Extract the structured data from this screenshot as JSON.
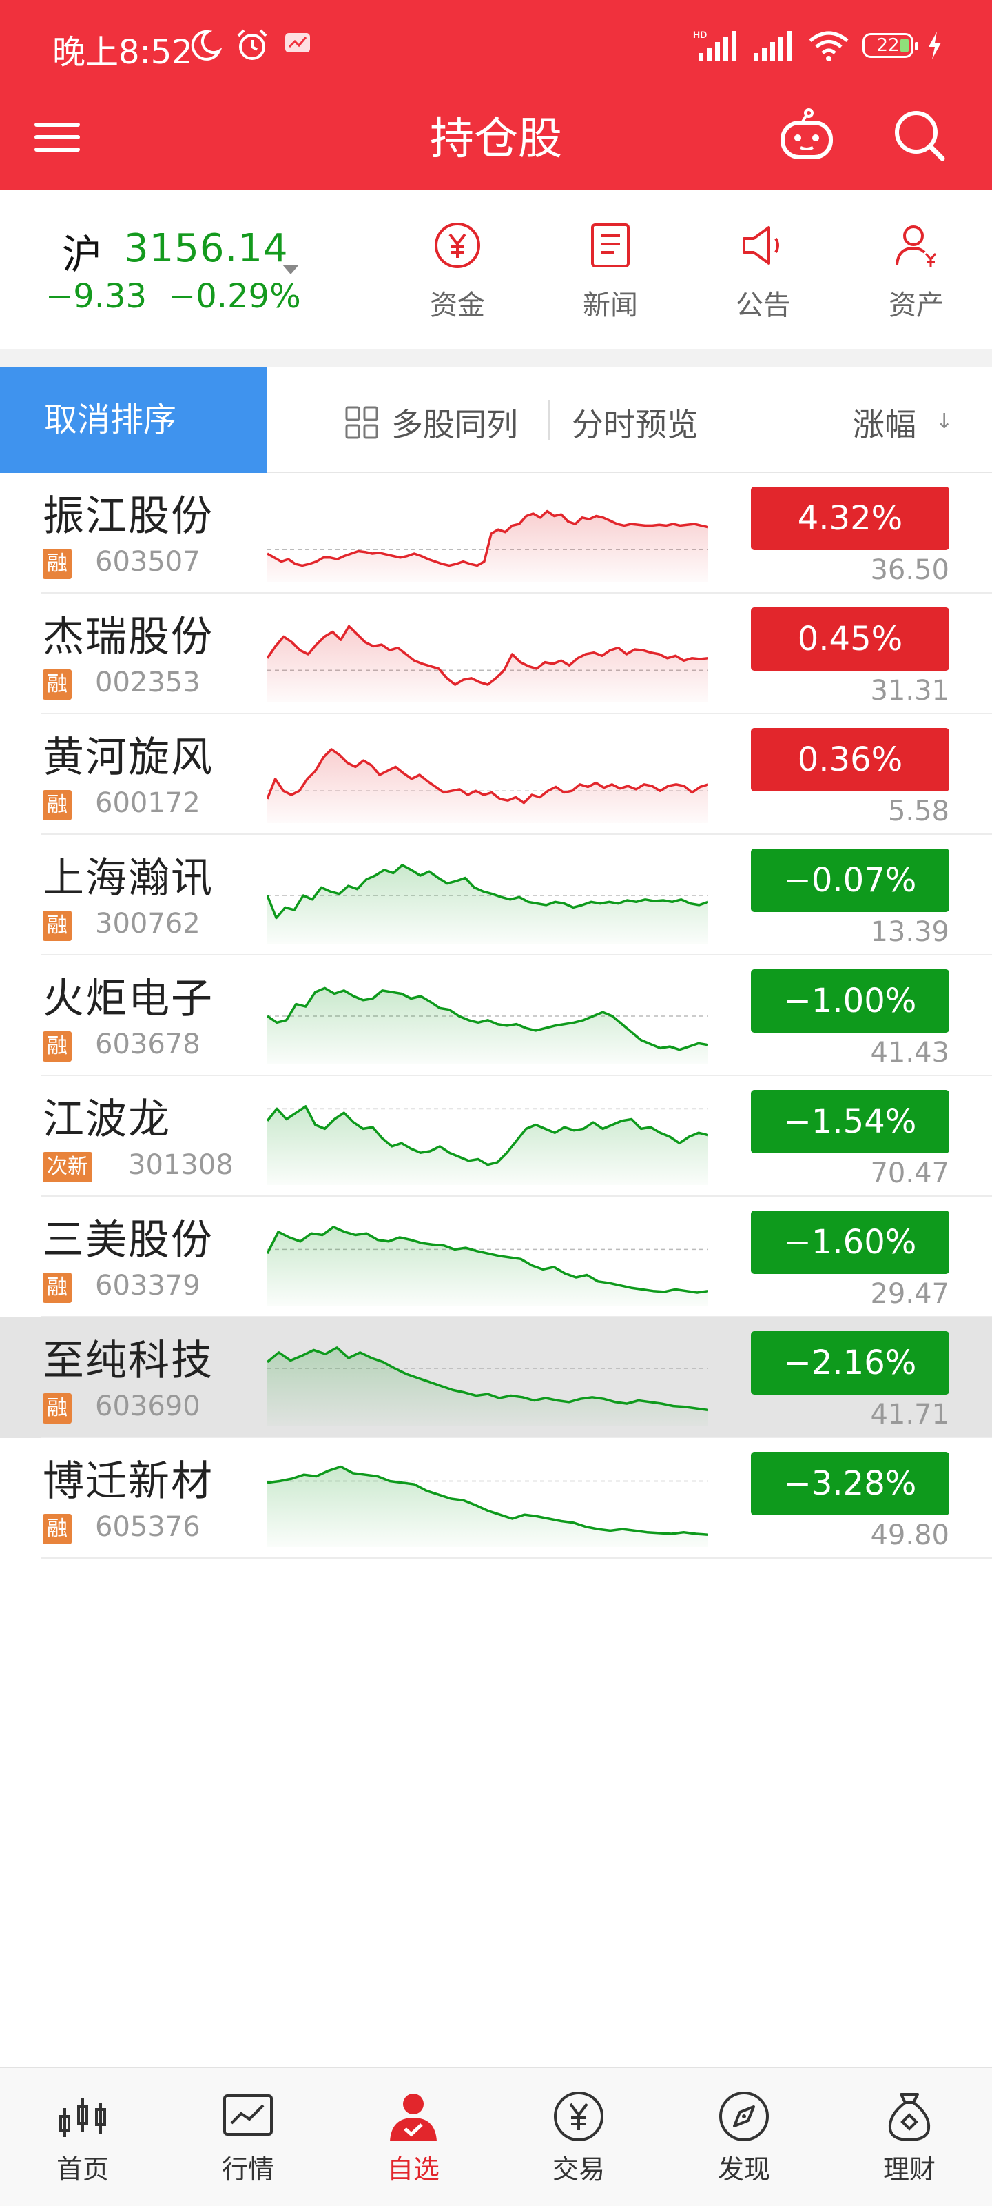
{
  "status_bar": {
    "time": "晚上8:52",
    "battery": "22"
  },
  "title": "持仓股",
  "index": {
    "name": "沪",
    "value": "3156.14",
    "change": "−9.33",
    "change_pct": "−0.29%"
  },
  "quick_actions": [
    {
      "label": "资金",
      "icon": "yuan-circle-icon"
    },
    {
      "label": "新闻",
      "icon": "news-doc-icon"
    },
    {
      "label": "公告",
      "icon": "speaker-icon"
    },
    {
      "label": "资产",
      "icon": "user-yuan-icon"
    }
  ],
  "sort_bar": {
    "cancel_label": "取消排序",
    "multi_label": "多股同列",
    "preview_label": "分时预览",
    "sort_label": "涨幅"
  },
  "stocks": [
    {
      "name": "振江股份",
      "tag": "融",
      "code": "603507",
      "change": "4.32%",
      "price": "36.50",
      "dir": "up",
      "spark": [
        0.25,
        0.2,
        0.15,
        0.18,
        0.12,
        0.1,
        0.12,
        0.15,
        0.2,
        0.2,
        0.18,
        0.22,
        0.25,
        0.28,
        0.27,
        0.25,
        0.26,
        0.24,
        0.22,
        0.2,
        0.22,
        0.25,
        0.22,
        0.18,
        0.15,
        0.12,
        0.1,
        0.12,
        0.15,
        0.12,
        0.1,
        0.15,
        0.5,
        0.55,
        0.52,
        0.6,
        0.62,
        0.72,
        0.75,
        0.7,
        0.78,
        0.72,
        0.74,
        0.65,
        0.62,
        0.7,
        0.68,
        0.72,
        0.7,
        0.66,
        0.62,
        0.6,
        0.62,
        0.61,
        0.6,
        0.6,
        0.61,
        0.6,
        0.62,
        0.6,
        0.61,
        0.62,
        0.6,
        0.58
      ],
      "baseline": 0.3
    },
    {
      "name": "杰瑞股份",
      "tag": "融",
      "code": "002353",
      "change": "0.45%",
      "price": "31.31",
      "dir": "up",
      "spark": [
        0.45,
        0.6,
        0.72,
        0.65,
        0.55,
        0.5,
        0.62,
        0.72,
        0.78,
        0.68,
        0.85,
        0.75,
        0.65,
        0.6,
        0.62,
        0.55,
        0.58,
        0.5,
        0.42,
        0.38,
        0.35,
        0.32,
        0.2,
        0.12,
        0.18,
        0.2,
        0.15,
        0.12,
        0.2,
        0.3,
        0.5,
        0.4,
        0.35,
        0.32,
        0.4,
        0.38,
        0.42,
        0.36,
        0.45,
        0.5,
        0.52,
        0.48,
        0.55,
        0.58,
        0.5,
        0.56,
        0.55,
        0.52,
        0.5,
        0.45,
        0.48,
        0.42,
        0.45,
        0.44,
        0.45
      ],
      "baseline": 0.3
    },
    {
      "name": "黄河旋风",
      "tag": "融",
      "code": "600172",
      "change": "0.36%",
      "price": "5.58",
      "dir": "up",
      "spark": [
        0.2,
        0.45,
        0.3,
        0.25,
        0.3,
        0.45,
        0.55,
        0.72,
        0.82,
        0.75,
        0.65,
        0.6,
        0.68,
        0.62,
        0.5,
        0.55,
        0.6,
        0.52,
        0.45,
        0.5,
        0.42,
        0.35,
        0.28,
        0.3,
        0.32,
        0.25,
        0.3,
        0.25,
        0.28,
        0.2,
        0.18,
        0.22,
        0.15,
        0.25,
        0.22,
        0.3,
        0.35,
        0.28,
        0.3,
        0.38,
        0.35,
        0.4,
        0.34,
        0.38,
        0.33,
        0.36,
        0.32,
        0.38,
        0.36,
        0.3,
        0.36,
        0.38,
        0.36,
        0.28,
        0.35,
        0.38
      ],
      "baseline": 0.3
    },
    {
      "name": "上海瀚讯",
      "tag": "融",
      "code": "300762",
      "change": "−0.07%",
      "price": "13.39",
      "dir": "down",
      "spark": [
        0.5,
        0.22,
        0.35,
        0.32,
        0.5,
        0.45,
        0.6,
        0.55,
        0.52,
        0.62,
        0.58,
        0.7,
        0.75,
        0.82,
        0.78,
        0.88,
        0.82,
        0.75,
        0.8,
        0.72,
        0.65,
        0.68,
        0.72,
        0.6,
        0.55,
        0.52,
        0.48,
        0.45,
        0.48,
        0.42,
        0.4,
        0.38,
        0.42,
        0.4,
        0.35,
        0.38,
        0.42,
        0.4,
        0.42,
        0.4,
        0.44,
        0.42,
        0.45,
        0.43,
        0.44,
        0.42,
        0.45,
        0.4,
        0.38,
        0.42
      ],
      "baseline": 0.5
    },
    {
      "name": "火炬电子",
      "tag": "融",
      "code": "603678",
      "change": "−1.00%",
      "price": "41.43",
      "dir": "down",
      "spark": [
        0.5,
        0.42,
        0.45,
        0.65,
        0.62,
        0.8,
        0.85,
        0.78,
        0.82,
        0.75,
        0.7,
        0.72,
        0.82,
        0.8,
        0.78,
        0.72,
        0.75,
        0.68,
        0.6,
        0.58,
        0.5,
        0.45,
        0.42,
        0.45,
        0.4,
        0.38,
        0.4,
        0.35,
        0.32,
        0.35,
        0.38,
        0.4,
        0.42,
        0.45,
        0.5,
        0.55,
        0.5,
        0.4,
        0.3,
        0.2,
        0.15,
        0.1,
        0.12,
        0.08,
        0.12,
        0.16,
        0.14
      ],
      "baseline": 0.5
    },
    {
      "name": "江波龙",
      "tag": "次新",
      "code": "301308",
      "change": "−1.54%",
      "price": "70.47",
      "dir": "down",
      "spark": [
        0.7,
        0.85,
        0.72,
        0.8,
        0.88,
        0.65,
        0.6,
        0.72,
        0.8,
        0.68,
        0.6,
        0.62,
        0.48,
        0.38,
        0.42,
        0.35,
        0.3,
        0.32,
        0.38,
        0.3,
        0.25,
        0.2,
        0.22,
        0.15,
        0.18,
        0.3,
        0.45,
        0.6,
        0.65,
        0.6,
        0.55,
        0.62,
        0.58,
        0.6,
        0.68,
        0.6,
        0.65,
        0.7,
        0.72,
        0.6,
        0.62,
        0.55,
        0.5,
        0.42,
        0.5,
        0.55,
        0.52
      ],
      "baseline": 0.85
    },
    {
      "name": "三美股份",
      "tag": "融",
      "code": "603379",
      "change": "−1.60%",
      "price": "29.47",
      "dir": "down",
      "spark": [
        0.55,
        0.82,
        0.75,
        0.7,
        0.8,
        0.78,
        0.88,
        0.82,
        0.78,
        0.8,
        0.72,
        0.7,
        0.75,
        0.72,
        0.68,
        0.66,
        0.65,
        0.6,
        0.62,
        0.58,
        0.55,
        0.52,
        0.5,
        0.48,
        0.4,
        0.35,
        0.38,
        0.3,
        0.25,
        0.28,
        0.2,
        0.18,
        0.15,
        0.12,
        0.1,
        0.08,
        0.07,
        0.1,
        0.08,
        0.06,
        0.08
      ],
      "baseline": 0.6
    },
    {
      "name": "至纯科技",
      "tag": "融",
      "code": "603690",
      "change": "−2.16%",
      "price": "41.71",
      "dir": "down",
      "selected": true,
      "spark": [
        0.7,
        0.82,
        0.72,
        0.78,
        0.85,
        0.8,
        0.88,
        0.75,
        0.82,
        0.75,
        0.7,
        0.62,
        0.55,
        0.5,
        0.45,
        0.4,
        0.35,
        0.32,
        0.28,
        0.3,
        0.25,
        0.28,
        0.26,
        0.22,
        0.25,
        0.22,
        0.2,
        0.24,
        0.26,
        0.24,
        0.2,
        0.18,
        0.22,
        0.2,
        0.18,
        0.15,
        0.14,
        0.12,
        0.1
      ],
      "baseline": 0.62
    },
    {
      "name": "博迁新材",
      "tag": "融",
      "code": "605376",
      "change": "−3.28%",
      "price": "49.80",
      "dir": "down",
      "spark": [
        0.7,
        0.72,
        0.75,
        0.8,
        0.78,
        0.85,
        0.9,
        0.82,
        0.8,
        0.78,
        0.72,
        0.7,
        0.68,
        0.6,
        0.55,
        0.5,
        0.48,
        0.42,
        0.35,
        0.3,
        0.25,
        0.3,
        0.28,
        0.25,
        0.22,
        0.2,
        0.15,
        0.12,
        0.1,
        0.12,
        0.1,
        0.08,
        0.07,
        0.06,
        0.08,
        0.06,
        0.05
      ],
      "baseline": 0.72
    }
  ],
  "nav": [
    {
      "label": "首页",
      "icon": "candlestick-icon",
      "active": false
    },
    {
      "label": "行情",
      "icon": "chart-line-icon",
      "active": false
    },
    {
      "label": "自选",
      "icon": "user-check-icon",
      "active": true
    },
    {
      "label": "交易",
      "icon": "yuan-circle-icon",
      "active": false
    },
    {
      "label": "发现",
      "icon": "compass-icon",
      "active": false
    },
    {
      "label": "理财",
      "icon": "money-bag-icon",
      "active": false
    }
  ],
  "colors": {
    "brand_red": "#f0313d",
    "up_red": "#e2262c",
    "down_green": "#0e9a1c",
    "index_green": "#149a1e",
    "accent_blue": "#3f93ee",
    "tag_orange": "#e8833b"
  }
}
